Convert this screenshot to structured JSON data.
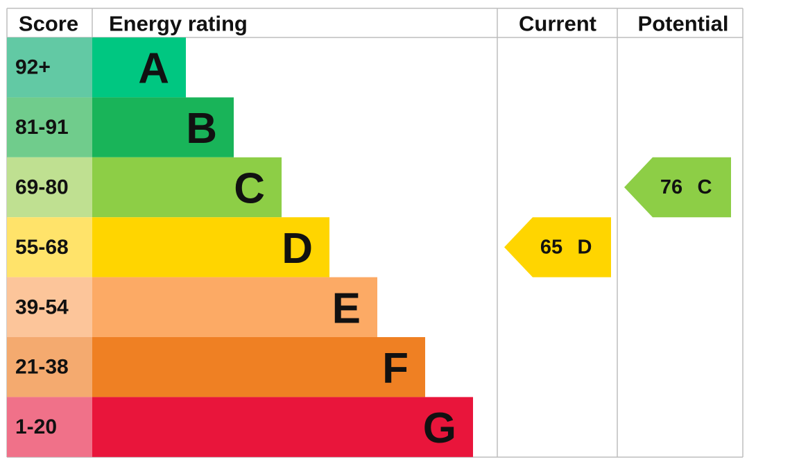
{
  "headers": {
    "score": "Score",
    "rating": "Energy rating",
    "current": "Current",
    "potential": "Potential"
  },
  "bands": [
    {
      "score": "92+",
      "letter": "A",
      "color": "#00c781",
      "score_color": "#62c9a4"
    },
    {
      "score": "81-91",
      "letter": "B",
      "color": "#19b459",
      "score_color": "#70cc8c"
    },
    {
      "score": "69-80",
      "letter": "C",
      "color": "#8dce46",
      "score_color": "#bfe091"
    },
    {
      "score": "55-68",
      "letter": "D",
      "color": "#ffd500",
      "score_color": "#ffe36a"
    },
    {
      "score": "39-54",
      "letter": "E",
      "color": "#fcaa65",
      "score_color": "#fcc59a"
    },
    {
      "score": "21-38",
      "letter": "F",
      "color": "#ef8023",
      "score_color": "#f4aa6f"
    },
    {
      "score": "1-20",
      "letter": "G",
      "color": "#e9153b",
      "score_color": "#f07189"
    }
  ],
  "current": {
    "value": 65,
    "letter": "D"
  },
  "potential": {
    "value": 76,
    "letter": "C"
  }
}
